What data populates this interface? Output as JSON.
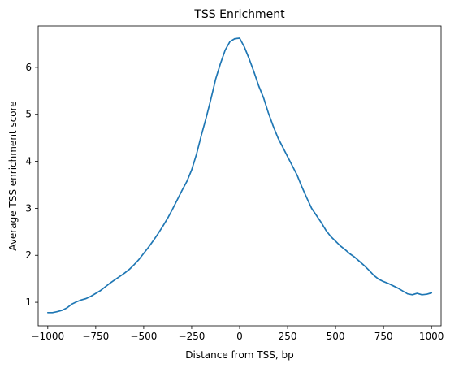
{
  "chart_data": {
    "type": "line",
    "title": "TSS Enrichment",
    "xlabel": "Distance from TSS, bp",
    "ylabel": "Average TSS enrichment score",
    "xlim": [
      -1050,
      1050
    ],
    "ylim": [
      0.5,
      6.88
    ],
    "xticks": [
      -1000,
      -750,
      -500,
      -250,
      0,
      250,
      500,
      750,
      1000
    ],
    "xtick_labels": [
      "−1000",
      "−750",
      "−500",
      "−250",
      "0",
      "250",
      "500",
      "750",
      "1000"
    ],
    "yticks": [
      1,
      2,
      3,
      4,
      5,
      6
    ],
    "ytick_labels": [
      "1",
      "2",
      "3",
      "4",
      "5",
      "6"
    ],
    "grid": false,
    "legend": false,
    "series": [
      {
        "color": "#1f77b4",
        "x": [
          -1000,
          -975,
          -950,
          -925,
          -900,
          -875,
          -850,
          -825,
          -800,
          -775,
          -750,
          -725,
          -700,
          -675,
          -650,
          -625,
          -600,
          -575,
          -550,
          -525,
          -500,
          -475,
          -450,
          -425,
          -400,
          -375,
          -350,
          -325,
          -300,
          -275,
          -250,
          -225,
          -200,
          -175,
          -150,
          -125,
          -100,
          -75,
          -50,
          -25,
          0,
          25,
          50,
          75,
          100,
          125,
          150,
          175,
          200,
          225,
          250,
          275,
          300,
          325,
          350,
          375,
          400,
          425,
          450,
          475,
          500,
          525,
          550,
          575,
          600,
          625,
          650,
          675,
          700,
          725,
          750,
          775,
          800,
          825,
          850,
          875,
          900,
          925,
          950,
          975,
          1000
        ],
        "y": [
          0.78,
          0.78,
          0.8,
          0.83,
          0.88,
          0.96,
          1.01,
          1.05,
          1.08,
          1.13,
          1.19,
          1.25,
          1.33,
          1.41,
          1.48,
          1.55,
          1.62,
          1.7,
          1.8,
          1.91,
          2.04,
          2.17,
          2.31,
          2.46,
          2.62,
          2.79,
          2.98,
          3.18,
          3.38,
          3.57,
          3.82,
          4.15,
          4.55,
          4.92,
          5.32,
          5.75,
          6.08,
          6.37,
          6.55,
          6.61,
          6.62,
          6.43,
          6.18,
          5.9,
          5.6,
          5.35,
          5.03,
          4.75,
          4.5,
          4.3,
          4.1,
          3.9,
          3.7,
          3.45,
          3.22,
          3.0,
          2.85,
          2.7,
          2.53,
          2.4,
          2.3,
          2.2,
          2.12,
          2.03,
          1.96,
          1.87,
          1.78,
          1.68,
          1.57,
          1.49,
          1.44,
          1.4,
          1.35,
          1.3,
          1.24,
          1.18,
          1.16,
          1.19,
          1.16,
          1.17,
          1.2
        ]
      }
    ]
  }
}
